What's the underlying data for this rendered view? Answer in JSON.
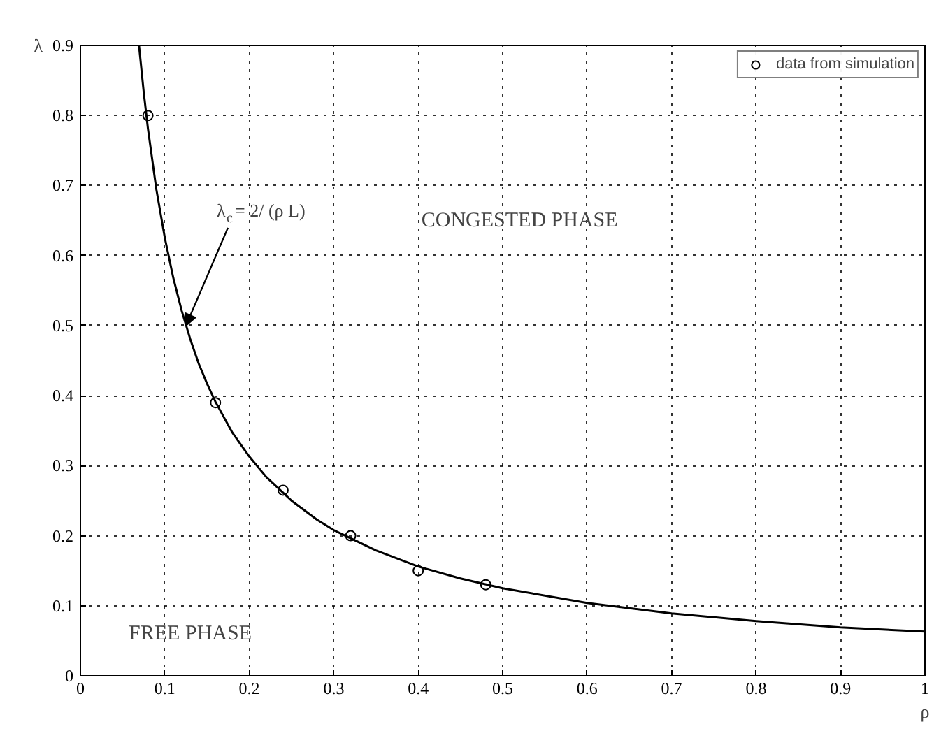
{
  "chart_data": {
    "type": "scatter",
    "xlabel": "ρ",
    "ylabel": "λ",
    "xlim": [
      0,
      1
    ],
    "ylim": [
      0,
      0.9
    ],
    "xticks": [
      0,
      0.1,
      0.2,
      0.3,
      0.4,
      0.5,
      0.6,
      0.7,
      0.8,
      0.9,
      1
    ],
    "yticks": [
      0,
      0.1,
      0.2,
      0.3,
      0.4,
      0.5,
      0.6,
      0.7,
      0.8,
      0.9
    ],
    "grid": true,
    "legend": "top right",
    "series": [
      {
        "name": "data from simulation",
        "marker": "circle",
        "color": "#000000",
        "x": [
          0.08,
          0.16,
          0.24,
          0.32,
          0.4,
          0.48
        ],
        "values": [
          0.8,
          0.39,
          0.265,
          0.2,
          0.15,
          0.13
        ]
      },
      {
        "type": "line",
        "color": "#000000",
        "line_style": "solid",
        "x": [
          0.0694,
          0.075,
          0.08,
          0.09,
          0.1,
          0.11,
          0.12,
          0.13,
          0.14,
          0.15,
          0.16,
          0.18,
          0.2,
          0.22,
          0.25,
          0.28,
          0.3,
          0.35,
          0.4,
          0.45,
          0.5,
          0.6,
          0.7,
          0.8,
          0.9,
          1.0
        ],
        "values": [
          0.9,
          0.833,
          0.781,
          0.694,
          0.625,
          0.568,
          0.521,
          0.481,
          0.446,
          0.417,
          0.391,
          0.347,
          0.313,
          0.284,
          0.25,
          0.223,
          0.208,
          0.179,
          0.156,
          0.139,
          0.125,
          0.104,
          0.089,
          0.078,
          0.069,
          0.063
        ]
      }
    ],
    "annotations": [
      {
        "text": "λ$_{c}$= 2/ (ρ L)",
        "x": 0.125,
        "y": 0.5
      },
      "CONGESTED PHASE",
      "FREE PHASE"
    ]
  }
}
